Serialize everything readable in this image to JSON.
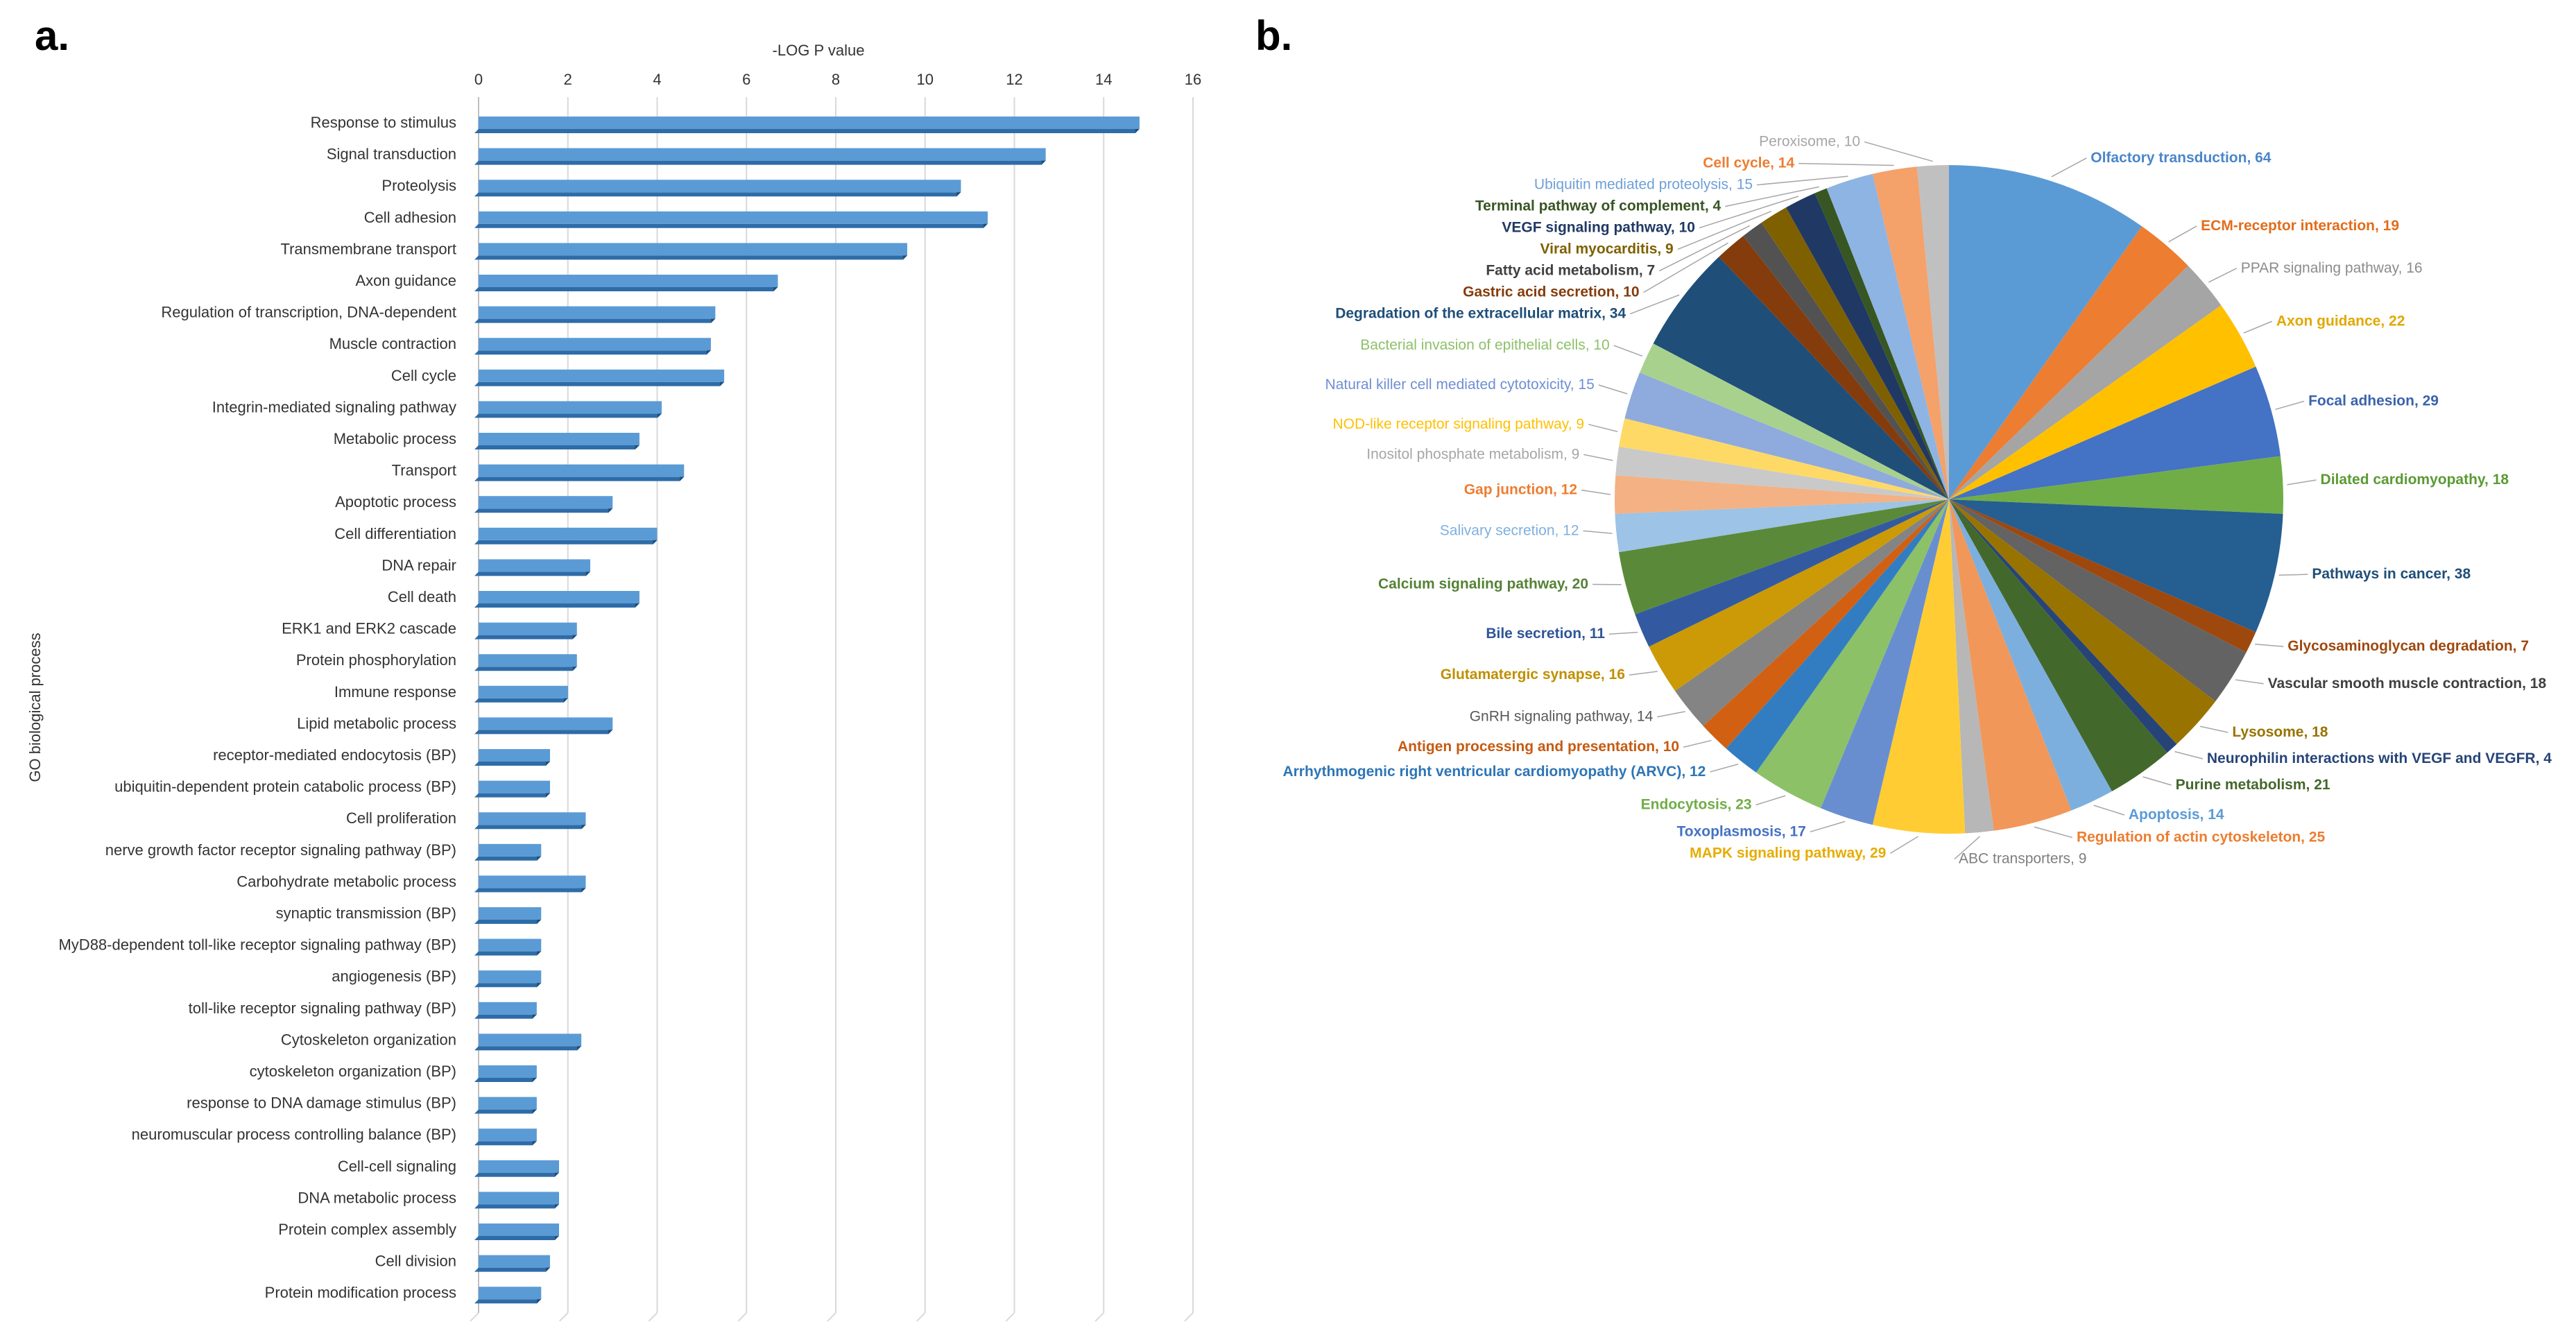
{
  "chart_data": [
    {
      "panel": "a.",
      "type": "bar",
      "orientation": "horizontal",
      "xlabel": "-LOG P value",
      "ylabel": "GO biological process",
      "xlim": [
        0,
        16
      ],
      "xticks": [
        "0",
        "2",
        "4",
        "6",
        "8",
        "10",
        "12",
        "14",
        "16"
      ],
      "grid": true,
      "color": "#5b9bd5",
      "categories": [
        "Response to stimulus",
        "Signal transduction",
        "Proteolysis",
        "Cell adhesion",
        "Transmembrane transport",
        "Axon guidance",
        "Regulation of transcription, DNA-dependent",
        "Muscle contraction",
        "Cell cycle",
        "Integrin-mediated signaling pathway",
        "Metabolic process",
        "Transport",
        "Apoptotic process",
        "Cell differentiation",
        "DNA repair",
        "Cell death",
        "ERK1 and ERK2 cascade",
        "Protein phosphorylation",
        "Immune response",
        "Lipid metabolic process",
        "receptor-mediated endocytosis (BP)",
        "ubiquitin-dependent protein catabolic process (BP)",
        "Cell proliferation",
        "nerve growth factor receptor signaling pathway (BP)",
        "Carbohydrate metabolic process",
        "synaptic transmission (BP)",
        "MyD88-dependent toll-like receptor signaling pathway (BP)",
        "angiogenesis (BP)",
        "toll-like receptor signaling pathway (BP)",
        "Cytoskeleton organization",
        "cytoskeleton organization (BP)",
        "response to DNA damage stimulus (BP)",
        "neuromuscular process controlling balance (BP)",
        "Cell-cell signaling",
        "DNA metabolic process",
        "Protein complex assembly",
        "Cell division",
        "Protein modification process"
      ],
      "values": [
        14.8,
        12.7,
        10.8,
        11.4,
        9.6,
        6.7,
        5.3,
        5.2,
        5.5,
        4.1,
        3.6,
        4.6,
        3.0,
        4.0,
        2.5,
        3.6,
        2.2,
        2.2,
        2.0,
        3.0,
        1.6,
        1.6,
        2.4,
        1.4,
        2.4,
        1.4,
        1.4,
        1.4,
        1.3,
        2.3,
        1.3,
        1.3,
        1.3,
        1.8,
        1.8,
        1.8,
        1.6,
        1.4
      ]
    },
    {
      "panel": "b.",
      "type": "pie",
      "slices": [
        {
          "label": "Olfactory transduction, 64",
          "value": 64,
          "color": "#5b9bd5",
          "label_color": "#4a86c8"
        },
        {
          "label": "ECM-receptor interaction, 19",
          "value": 19,
          "color": "#ed7d31",
          "label_color": "#e36c1a"
        },
        {
          "label": "PPAR signaling pathway, 16",
          "value": 16,
          "color": "#a5a5a5",
          "label_color": "#8c8c8c"
        },
        {
          "label": "Axon guidance, 22",
          "value": 22,
          "color": "#ffc000",
          "label_color": "#e0a800"
        },
        {
          "label": "Focal adhesion, 29",
          "value": 29,
          "color": "#4472c4",
          "label_color": "#3b63ad"
        },
        {
          "label": "Dilated cardiomyopathy, 18",
          "value": 18,
          "color": "#70ad47",
          "label_color": "#5a9a33"
        },
        {
          "label": "Pathways in cancer, 38",
          "value": 38,
          "color": "#255e91",
          "label_color": "#1f4e79"
        },
        {
          "label": "Glycosaminoglycan degradation, 7",
          "value": 7,
          "color": "#9e480e",
          "label_color": "#9e480e"
        },
        {
          "label": "Vascular smooth muscle contraction, 18",
          "value": 18,
          "color": "#636363",
          "label_color": "#404040"
        },
        {
          "label": "Lysosome, 18",
          "value": 18,
          "color": "#997300",
          "label_color": "#997300"
        },
        {
          "label": "Neurophilin interactions with VEGF and VEGFR, 4",
          "value": 4,
          "color": "#264478",
          "label_color": "#264478"
        },
        {
          "label": "Purine metabolism, 21",
          "value": 21,
          "color": "#43682b",
          "label_color": "#43682b"
        },
        {
          "label": "Apoptosis, 14",
          "value": 14,
          "color": "#7cafdd",
          "label_color": "#5b9bd5"
        },
        {
          "label": "Regulation of actin cytoskeleton, 25",
          "value": 25,
          "color": "#f1975a",
          "label_color": "#ed7d31"
        },
        {
          "label": "ABC transporters, 9",
          "value": 9,
          "color": "#b7b7b7",
          "label_color": "#7f7f7f"
        },
        {
          "label": "MAPK signaling pathway, 29",
          "value": 29,
          "color": "#ffcd33",
          "label_color": "#e6ac00"
        },
        {
          "label": "Toxoplasmosis, 17",
          "value": 17,
          "color": "#698ed0",
          "label_color": "#4472c4"
        },
        {
          "label": "Endocytosis, 23",
          "value": 23,
          "color": "#8cc168",
          "label_color": "#70ad47"
        },
        {
          "label": "Arrhythmogenic right ventricular cardiomyopathy (ARVC), 12",
          "value": 12,
          "color": "#327dc2",
          "label_color": "#2e75b6"
        },
        {
          "label": "Antigen processing and presentation, 10",
          "value": 10,
          "color": "#d26012",
          "label_color": "#c55a11"
        },
        {
          "label": "GnRH signaling pathway, 14",
          "value": 14,
          "color": "#848484",
          "label_color": "#595959"
        },
        {
          "label": "Glutamatergic synapse, 16",
          "value": 16,
          "color": "#cc9a06",
          "label_color": "#bf8f00"
        },
        {
          "label": "Bile secretion, 11",
          "value": 11,
          "color": "#335aa1",
          "label_color": "#2f5597"
        },
        {
          "label": "Calcium signaling pathway, 20",
          "value": 20,
          "color": "#5a8a39",
          "label_color": "#548235"
        },
        {
          "label": "Salivary secretion, 12",
          "value": 12,
          "color": "#9dc3e6",
          "label_color": "#7fb0df"
        },
        {
          "label": "Gap junction, 12",
          "value": 12,
          "color": "#f4b183",
          "label_color": "#ed7d31"
        },
        {
          "label": "Inositol phosphate metabolism, 9",
          "value": 9,
          "color": "#c9c9c9",
          "label_color": "#a6a6a6"
        },
        {
          "label": "NOD-like receptor signaling pathway, 9",
          "value": 9,
          "color": "#ffd966",
          "label_color": "#ffc000"
        },
        {
          "label": "Natural killer cell mediated cytotoxicity, 15",
          "value": 15,
          "color": "#8faadc",
          "label_color": "#6f8fd1"
        },
        {
          "label": "Bacterial invasion of epithelial cells, 10",
          "value": 10,
          "color": "#a9d18e",
          "label_color": "#8cc168"
        },
        {
          "label": "Degradation of the extracellular matrix, 34",
          "value": 34,
          "color": "#1f4e79",
          "label_color": "#1f4e79"
        },
        {
          "label": "Gastric acid secretion, 10",
          "value": 10,
          "color": "#843c0c",
          "label_color": "#843c0c"
        },
        {
          "label": "Fatty acid metabolism, 7",
          "value": 7,
          "color": "#525252",
          "label_color": "#404040"
        },
        {
          "label": "Viral myocarditis, 9",
          "value": 9,
          "color": "#7f6000",
          "label_color": "#7f6000"
        },
        {
          "label": "VEGF signaling pathway, 10",
          "value": 10,
          "color": "#203864",
          "label_color": "#203864"
        },
        {
          "label": "Terminal pathway of complement, 4",
          "value": 4,
          "color": "#375623",
          "label_color": "#375623"
        },
        {
          "label": "Ubiquitin mediated proteolysis, 15",
          "value": 15,
          "color": "#8eb4e3",
          "label_color": "#6fa0d8"
        },
        {
          "label": "Cell cycle, 14",
          "value": 14,
          "color": "#f4a16a",
          "label_color": "#ed7d31"
        },
        {
          "label": "Peroxisome, 10",
          "value": 10,
          "color": "#c0c0c0",
          "label_color": "#a6a6a6"
        }
      ]
    }
  ]
}
